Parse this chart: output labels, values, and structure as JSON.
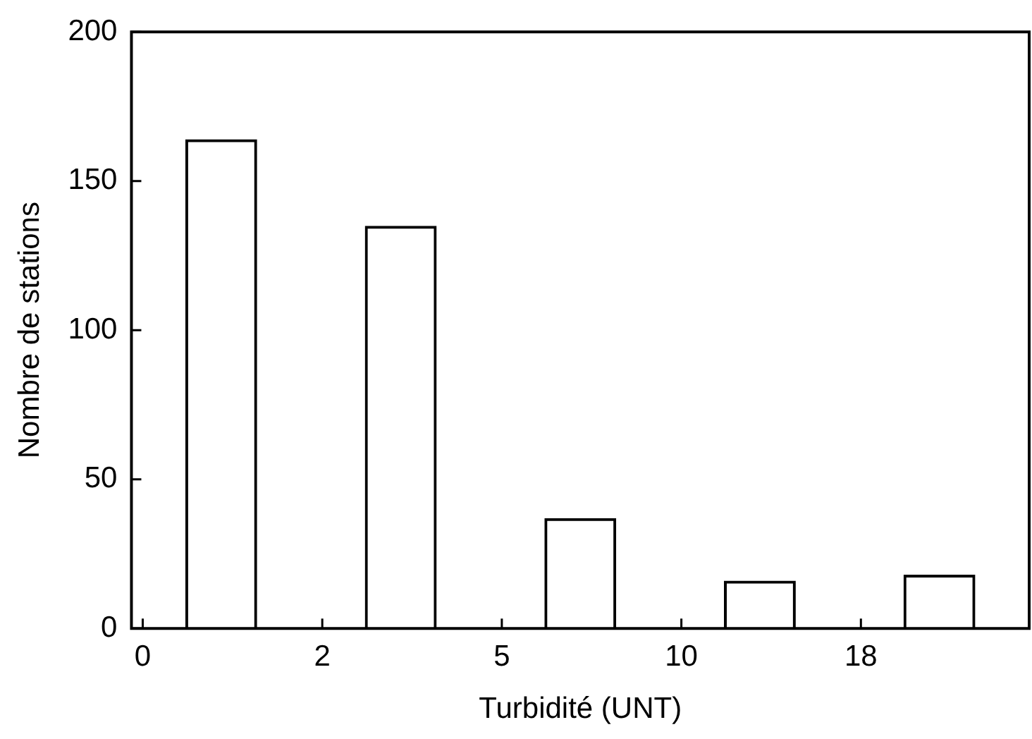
{
  "chart_data": {
    "type": "bar",
    "xlabel": "Turbidité (UNT)",
    "ylabel": "Nombre de stations",
    "categories": [
      "0",
      "2",
      "5",
      "10",
      "18"
    ],
    "values": [
      164,
      135,
      37,
      16,
      18
    ],
    "color": "#000000",
    "ylim": [
      0,
      200
    ],
    "yticks": [
      0,
      50,
      100,
      150,
      200
    ],
    "grid": false,
    "legend": false
  }
}
